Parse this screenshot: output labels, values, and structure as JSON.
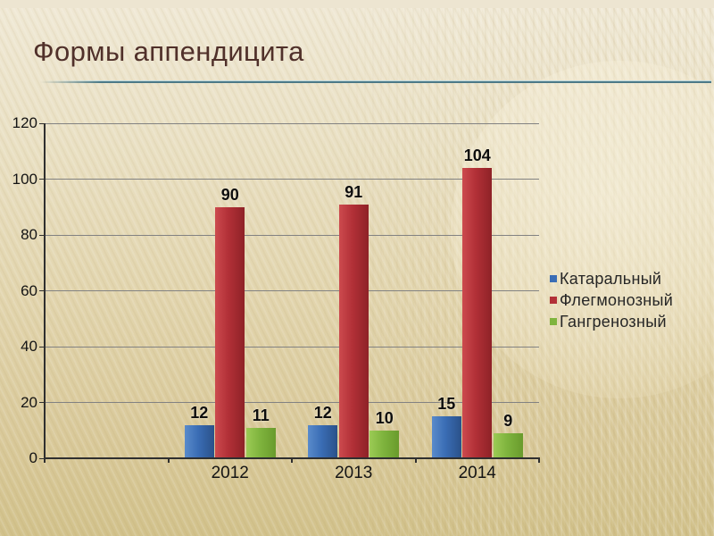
{
  "slide": {
    "title": "Формы аппендицита"
  },
  "chart_data": {
    "type": "bar",
    "title": "Формы аппендицита",
    "categories": [
      "2012",
      "2013",
      "2014"
    ],
    "series": [
      {
        "key": "kataralnyj",
        "name": "Катаральный",
        "color": "#3a6db5",
        "color_light": "#5a8bcb",
        "color_dark": "#2a5189",
        "values": [
          12,
          12,
          15
        ]
      },
      {
        "key": "flegmonoznyj",
        "name": "Флегмонозный",
        "color": "#b23037",
        "color_light": "#cc4a4e",
        "color_dark": "#8e2227",
        "values": [
          90,
          91,
          104
        ]
      },
      {
        "key": "gangrenoznyj",
        "name": "Гангренозный",
        "color": "#7fb43e",
        "color_light": "#9ccb55",
        "color_dark": "#699b2c",
        "values": [
          11,
          10,
          9
        ]
      }
    ],
    "y_ticks": [
      0,
      20,
      40,
      60,
      80,
      100,
      120
    ],
    "ylim": [
      0,
      120
    ],
    "xlabel": "",
    "ylabel": "",
    "grid": true,
    "legend_position": "right",
    "leading_empty_category": true,
    "data_labels": true
  },
  "colors": {
    "background_top": "#eee6d0",
    "background_bottom": "#d2c28c",
    "title_text": "#50302a",
    "title_rule_teal": "#4d7a87",
    "gridline": "#828282",
    "axis": "#2f2f2f",
    "tick_label": "#141414",
    "legend_text": "#262626"
  }
}
